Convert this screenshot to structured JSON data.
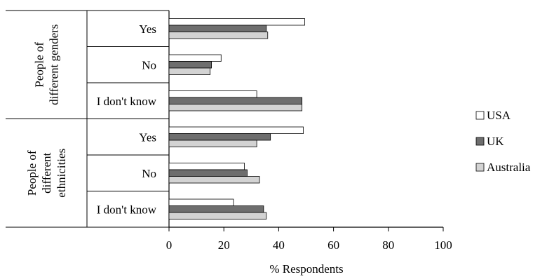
{
  "chart_data": {
    "type": "bar",
    "orientation": "horizontal",
    "xlabel": "% Respondents",
    "xlim": [
      0,
      100
    ],
    "xticks": [
      "0",
      "20",
      "40",
      "60",
      "80",
      "100"
    ],
    "grid": false,
    "legend_position": "right",
    "groups": [
      {
        "label": "People of different genders",
        "label_lines": [
          "People of",
          "different genders"
        ],
        "categories": [
          "Yes",
          "No",
          "I don't know"
        ]
      },
      {
        "label": "People of different ethnicities",
        "label_lines": [
          "People of",
          "different",
          "ethnicities"
        ],
        "categories": [
          "Yes",
          "No",
          "I don't know"
        ]
      }
    ],
    "series": [
      {
        "name": "USA",
        "color": "#ffffff",
        "values": [
          49.5,
          19,
          32,
          49,
          27.5,
          23.5
        ]
      },
      {
        "name": "UK",
        "color": "#6e6e6e",
        "values": [
          35.5,
          15.5,
          48.5,
          37,
          28.5,
          34.5
        ]
      },
      {
        "name": "Australia",
        "color": "#d3d3d3",
        "values": [
          36,
          15,
          48.5,
          32,
          33,
          35.5
        ]
      }
    ]
  }
}
